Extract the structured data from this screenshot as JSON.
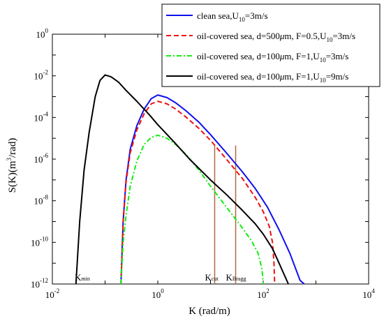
{
  "chart_data": {
    "type": "line",
    "xlabel": "K (rad/m)",
    "ylabel_parts": {
      "main": "S(K)(m",
      "sup": "3",
      "tail": "/rad)"
    },
    "xscale": "log",
    "yscale": "log",
    "xlim": [
      0.01,
      10000
    ],
    "ylim": [
      1e-12,
      1
    ],
    "grid": false,
    "legend_position": "top-right",
    "x_ticks": [
      {
        "value": 0.01,
        "base": "10",
        "exp": "-2"
      },
      {
        "value": 1,
        "base": "10",
        "exp": "0"
      },
      {
        "value": 100,
        "base": "10",
        "exp": "2"
      },
      {
        "value": 10000,
        "base": "10",
        "exp": "4"
      }
    ],
    "y_ticks": [
      {
        "value": 1,
        "base": "10",
        "exp": "0"
      },
      {
        "value": 0.01,
        "base": "10",
        "exp": "-2"
      },
      {
        "value": 0.0001,
        "base": "10",
        "exp": "-4"
      },
      {
        "value": 1e-06,
        "base": "10",
        "exp": "-6"
      },
      {
        "value": 1e-08,
        "base": "10",
        "exp": "-8"
      },
      {
        "value": 1e-10,
        "base": "10",
        "exp": "-10"
      },
      {
        "value": 1e-12,
        "base": "10",
        "exp": "-12"
      }
    ],
    "series": [
      {
        "name_parts": {
          "main": "clean sea,U",
          "sub": "10",
          "tail": "=3m/s"
        },
        "color": "#1010ee",
        "dash": "solid",
        "points": [
          [
            0.2,
            1e-12
          ],
          [
            0.22,
            1e-09
          ],
          [
            0.25,
            1e-07
          ],
          [
            0.3,
            3e-06
          ],
          [
            0.4,
            4e-05
          ],
          [
            0.55,
            0.00025
          ],
          [
            0.75,
            0.0008
          ],
          [
            1.0,
            0.0012
          ],
          [
            1.5,
            0.0009
          ],
          [
            2.2,
            0.0005
          ],
          [
            3.5,
            0.0002
          ],
          [
            6,
            6e-05
          ],
          [
            10,
            1.5e-05
          ],
          [
            20,
            2e-06
          ],
          [
            40,
            2.5e-07
          ],
          [
            70,
            4e-08
          ],
          [
            120,
            5e-09
          ],
          [
            200,
            4e-10
          ],
          [
            320,
            3e-11
          ],
          [
            500,
            1.5e-12
          ],
          [
            600,
            1e-12
          ]
        ]
      },
      {
        "name_parts": {
          "main": "oil-covered sea, d=500",
          "mu": "μ",
          "mid": "m, F=0.5,U",
          "sub": "10",
          "tail": "=3m/s"
        },
        "color": "#ee1010",
        "dash": "dashed",
        "points": [
          [
            0.2,
            1e-12
          ],
          [
            0.22,
            1e-09
          ],
          [
            0.25,
            8e-08
          ],
          [
            0.3,
            2e-06
          ],
          [
            0.4,
            2.5e-05
          ],
          [
            0.55,
            0.00015
          ],
          [
            0.75,
            0.00045
          ],
          [
            1.0,
            0.0006
          ],
          [
            1.5,
            0.00045
          ],
          [
            2.2,
            0.00025
          ],
          [
            3.5,
            0.0001
          ],
          [
            6,
            3e-05
          ],
          [
            10,
            8e-06
          ],
          [
            20,
            1e-06
          ],
          [
            40,
            1.2e-07
          ],
          [
            70,
            1.5e-08
          ],
          [
            100,
            3e-09
          ],
          [
            130,
            6e-10
          ],
          [
            150,
            1e-10
          ],
          [
            160,
            1e-11
          ],
          [
            165,
            1e-12
          ]
        ]
      },
      {
        "name_parts": {
          "main": "oil-covered sea, d=100",
          "mu": "μ",
          "mid": "m, F=1,U",
          "sub": "10",
          "tail": "=3m/s"
        },
        "color": "#10ee10",
        "dash": "dashdot",
        "points": [
          [
            0.2,
            1e-12
          ],
          [
            0.22,
            1e-10
          ],
          [
            0.25,
            2e-09
          ],
          [
            0.3,
            5e-08
          ],
          [
            0.4,
            8e-07
          ],
          [
            0.55,
            5e-06
          ],
          [
            0.75,
            1.1e-05
          ],
          [
            1.0,
            1.4e-05
          ],
          [
            1.5,
            1e-05
          ],
          [
            2.2,
            5e-06
          ],
          [
            3.5,
            1.6e-06
          ],
          [
            6,
            3e-07
          ],
          [
            10,
            5e-08
          ],
          [
            20,
            5e-09
          ],
          [
            40,
            5e-10
          ],
          [
            60,
            1.2e-10
          ],
          [
            80,
            3e-11
          ],
          [
            95,
            5e-12
          ],
          [
            100,
            1e-12
          ]
        ]
      },
      {
        "name_parts": {
          "main": "oil-covered sea, d=100",
          "mu": "μ",
          "mid": "m, F=1,U",
          "sub": "10",
          "tail": "=9m/s"
        },
        "color": "#000000",
        "dash": "solid",
        "points": [
          [
            0.028,
            1e-12
          ],
          [
            0.033,
            1e-09
          ],
          [
            0.04,
            3e-07
          ],
          [
            0.05,
            2e-05
          ],
          [
            0.065,
            0.001
          ],
          [
            0.08,
            0.006
          ],
          [
            0.1,
            0.011
          ],
          [
            0.13,
            0.009
          ],
          [
            0.18,
            0.005
          ],
          [
            0.25,
            0.002
          ],
          [
            0.4,
            0.0006
          ],
          [
            0.7,
            0.00013
          ],
          [
            1,
            4.5e-05
          ],
          [
            2,
            7e-06
          ],
          [
            4,
            1e-06
          ],
          [
            10,
            1e-07
          ],
          [
            20,
            2e-08
          ],
          [
            40,
            3.5e-09
          ],
          [
            70,
            8e-10
          ],
          [
            100,
            2.5e-10
          ],
          [
            150,
            5e-11
          ],
          [
            200,
            1e-11
          ],
          [
            300,
            1e-12
          ]
        ]
      }
    ],
    "vlines": [
      {
        "x": 12,
        "y_top": 4.5e-06,
        "color": "#b06a40"
      },
      {
        "x": 30,
        "y_top": 4.5e-06,
        "color": "#b06a40"
      }
    ],
    "annotations": [
      {
        "x": 0.03,
        "main": "K",
        "sub": "min"
      },
      {
        "x": 12,
        "main": "K",
        "sub": "cut"
      },
      {
        "x": 30,
        "main": "K",
        "sub": "Bragg"
      }
    ]
  }
}
